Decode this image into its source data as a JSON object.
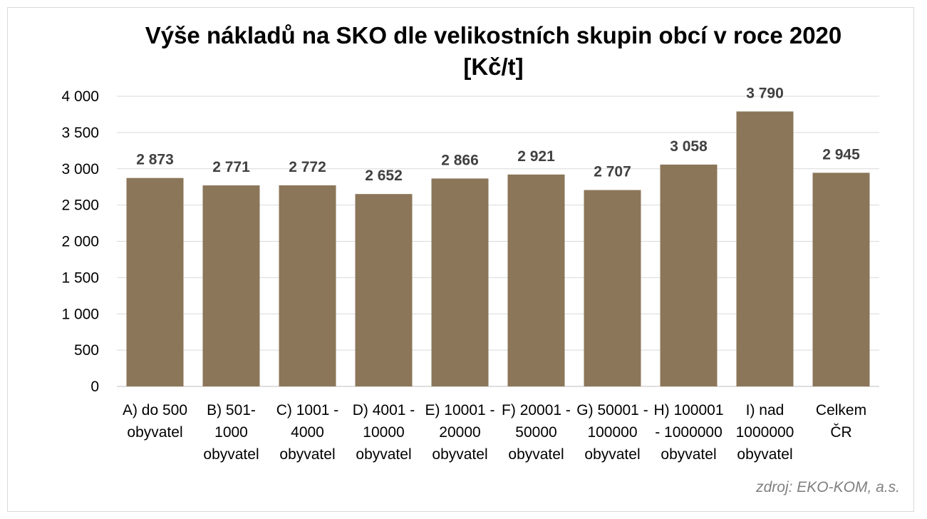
{
  "chart_data": {
    "type": "bar",
    "title": "Výše nákladů na SKO dle velikostních skupin obcí v roce  2020",
    "subtitle": "[Kč/t]",
    "categories": [
      [
        "A) do 500",
        "obyvatel"
      ],
      [
        "B) 501-",
        "1000",
        "obyvatel"
      ],
      [
        "C) 1001 -",
        "4000",
        "obyvatel"
      ],
      [
        "D) 4001 -",
        "10000",
        "obyvatel"
      ],
      [
        "E) 10001 -",
        "20000",
        "obyvatel"
      ],
      [
        "F) 20001 -",
        "50000",
        "obyvatel"
      ],
      [
        "G) 50001 -",
        "100000",
        "obyvatel"
      ],
      [
        "H) 100001",
        "- 1000000",
        "obyvatel"
      ],
      [
        "I) nad",
        "1000000",
        "obyvatel"
      ],
      [
        "Celkem",
        "ČR"
      ]
    ],
    "values": [
      2873,
      2771,
      2772,
      2652,
      2866,
      2921,
      2707,
      3058,
      3790,
      2945
    ],
    "value_labels": [
      "2 873",
      "2 771",
      "2 772",
      "2 652",
      "2 866",
      "2 921",
      "2 707",
      "3 058",
      "3 790",
      "2 945"
    ],
    "ylim": [
      0,
      4000
    ],
    "yticks": [
      0,
      500,
      1000,
      1500,
      2000,
      2500,
      3000,
      3500,
      4000
    ],
    "ytick_labels": [
      "0",
      "500",
      "1 000",
      "1 500",
      "2 000",
      "2 500",
      "3 000",
      "3 500",
      "4 000"
    ],
    "xlabel": "",
    "ylabel": "",
    "grid": true,
    "bar_color": "#8B7659",
    "grid_color": "#d9d9d9"
  },
  "source": "zdroj: EKO-KOM, a.s."
}
